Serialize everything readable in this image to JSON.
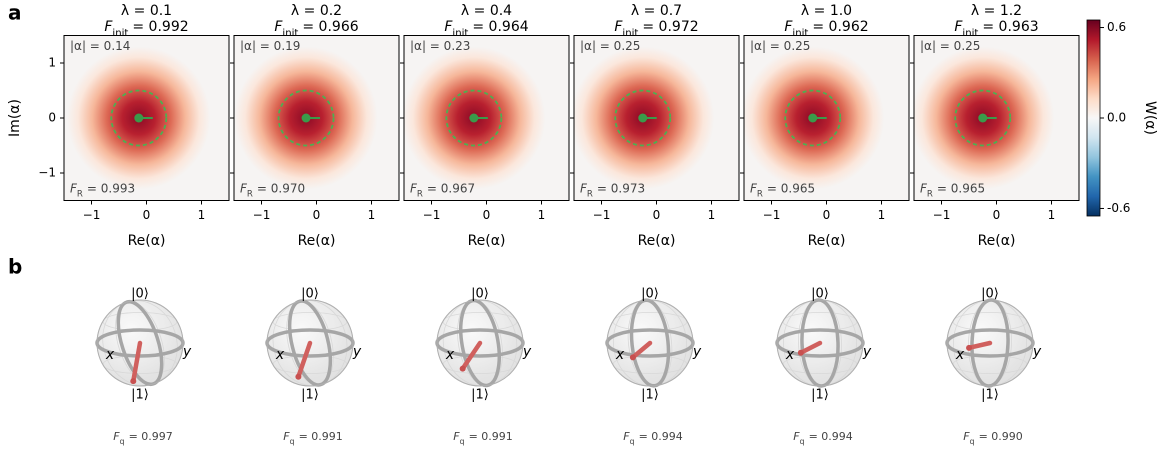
{
  "panel_labels": [
    "a",
    "b"
  ],
  "axis_labels": {
    "x": "Re(α)",
    "y": "Im(α)"
  },
  "colorbar": {
    "label": "W(α)",
    "zlim": [
      -0.65,
      0.65
    ],
    "ticks": [
      -0.6,
      {
        "value": 0,
        "label": "0.0"
      },
      0.6
    ]
  },
  "chart_data": [
    {
      "type": "wigner",
      "title": "λ = 0.1",
      "fidelity_symbol": "F",
      "fidelity_subscript": "init",
      "fidelity": "= 0.992",
      "amplitude": "|α| = 0.14",
      "fr_symbol": "F",
      "fr_subscript": "R",
      "fr": "= 0.993",
      "center": [
        -0.14,
        0
      ],
      "circle_radius": 0.5,
      "peak": 0.6,
      "xlim": [
        -1.5,
        1.5
      ],
      "ylim": [
        -1.5,
        1.5
      ],
      "xticks": [
        {
          "value": -1,
          "label": "−1"
        },
        0,
        1
      ],
      "yticks": [
        {
          "value": -1,
          "label": "−1"
        },
        0,
        1
      ]
    },
    {
      "type": "wigner",
      "title": "λ = 0.2",
      "fidelity_symbol": "F",
      "fidelity_subscript": "init",
      "fidelity": "= 0.966",
      "amplitude": "|α| = 0.19",
      "fr_symbol": "F",
      "fr_subscript": "R",
      "fr": "= 0.970",
      "center": [
        -0.19,
        0
      ],
      "circle_radius": 0.5,
      "peak": 0.6,
      "xlim": [
        -1.5,
        1.5
      ],
      "ylim": [
        -1.5,
        1.5
      ],
      "xticks": [
        {
          "value": -1,
          "label": "−1"
        },
        0,
        1
      ],
      "yticks": [
        -1,
        0,
        1
      ]
    },
    {
      "type": "wigner",
      "title": "λ = 0.4",
      "fidelity_symbol": "F",
      "fidelity_subscript": "init",
      "fidelity": "= 0.964",
      "amplitude": "|α| = 0.23",
      "fr_symbol": "F",
      "fr_subscript": "R",
      "fr": "= 0.967",
      "center": [
        -0.23,
        0
      ],
      "circle_radius": 0.5,
      "peak": 0.6,
      "xlim": [
        -1.5,
        1.5
      ],
      "ylim": [
        -1.5,
        1.5
      ],
      "xticks": [
        {
          "value": -1,
          "label": "−1"
        },
        0,
        1
      ],
      "yticks": [
        -1,
        0,
        1
      ]
    },
    {
      "type": "wigner",
      "title": "λ = 0.7",
      "fidelity_symbol": "F",
      "fidelity_subscript": "init",
      "fidelity": "= 0.972",
      "amplitude": "|α| = 0.25",
      "fr_symbol": "F",
      "fr_subscript": "R",
      "fr": "= 0.973",
      "center": [
        -0.25,
        0
      ],
      "circle_radius": 0.5,
      "peak": 0.6,
      "xlim": [
        -1.5,
        1.5
      ],
      "ylim": [
        -1.5,
        1.5
      ],
      "xticks": [
        {
          "value": -1,
          "label": "−1"
        },
        0,
        1
      ],
      "yticks": [
        -1,
        0,
        1
      ]
    },
    {
      "type": "wigner",
      "title": "λ = 1.0",
      "fidelity_symbol": "F",
      "fidelity_subscript": "init",
      "fidelity": "= 0.962",
      "amplitude": "|α| = 0.25",
      "fr_symbol": "F",
      "fr_subscript": "R",
      "fr": "= 0.965",
      "center": [
        -0.25,
        0
      ],
      "circle_radius": 0.5,
      "peak": 0.6,
      "xlim": [
        -1.5,
        1.5
      ],
      "ylim": [
        -1.5,
        1.5
      ],
      "xticks": [
        {
          "value": -1,
          "label": "−1"
        },
        0,
        1
      ],
      "yticks": [
        -1,
        0,
        1
      ]
    },
    {
      "type": "wigner",
      "title": "λ = 1.2",
      "fidelity_symbol": "F",
      "fidelity_subscript": "init",
      "fidelity": "= 0.963",
      "amplitude": "|α| = 0.25",
      "fr_symbol": "F",
      "fr_subscript": "R",
      "fr": "= 0.965",
      "center": [
        -0.25,
        0
      ],
      "circle_radius": 0.5,
      "peak": 0.6,
      "xlim": [
        -1.5,
        1.5
      ],
      "ylim": [
        -1.5,
        1.5
      ],
      "xticks": [
        {
          "value": -1,
          "label": "−1"
        },
        0,
        1
      ],
      "yticks": [
        -1,
        0,
        1
      ]
    }
  ],
  "bloch": {
    "ket_top": "|0⟩",
    "ket_bottom": "|1⟩",
    "x_label": "x",
    "y_label": "y",
    "spheres": [
      {
        "vector_angle": 10,
        "vector_length": 0.9,
        "fidelity_symbol": "F",
        "fidelity_subscript": "q",
        "fidelity": "= 0.997"
      },
      {
        "vector_angle": 19,
        "vector_length": 0.83,
        "fidelity_symbol": "F",
        "fidelity_subscript": "q",
        "fidelity": "= 0.991"
      },
      {
        "vector_angle": 34,
        "vector_length": 0.72,
        "fidelity_symbol": "F",
        "fidelity_subscript": "q",
        "fidelity": "= 0.991"
      },
      {
        "vector_angle": 50,
        "vector_length": 0.52,
        "fidelity_symbol": "F",
        "fidelity_subscript": "q",
        "fidelity": "= 0.994"
      },
      {
        "vector_angle": 63,
        "vector_length": 0.5,
        "fidelity_symbol": "F",
        "fidelity_subscript": "q",
        "fidelity": "= 0.994"
      },
      {
        "vector_angle": 77,
        "vector_length": 0.5,
        "fidelity_symbol": "F",
        "fidelity_subscript": "q",
        "fidelity": "= 0.990"
      }
    ]
  }
}
